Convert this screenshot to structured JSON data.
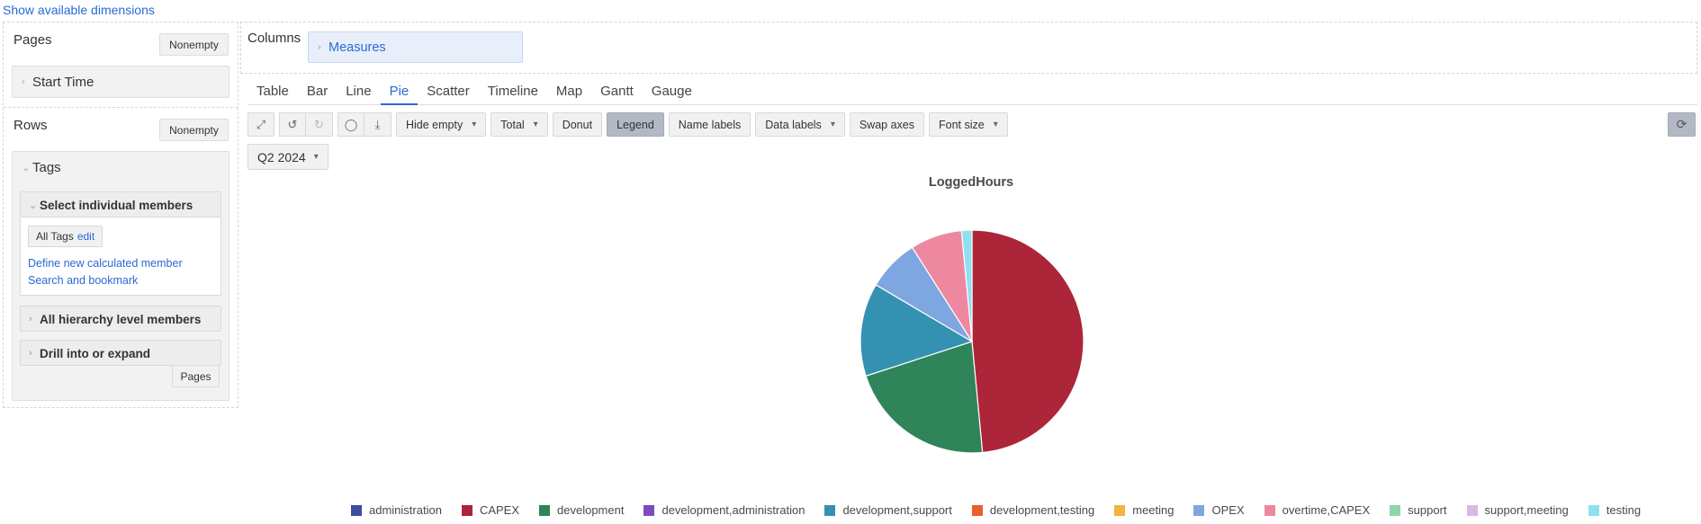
{
  "top_link": "Show available dimensions",
  "pages_section": {
    "title": "Pages",
    "nonempty": "Nonempty",
    "dimension": "Start Time"
  },
  "rows_section": {
    "title": "Rows",
    "nonempty": "Nonempty",
    "dimension": "Tags",
    "select_individual": "Select individual members",
    "chip_label": "All Tags",
    "chip_edit": "edit",
    "define_link": "Define new calculated member",
    "search_link": "Search and bookmark",
    "all_hierarchy": "All hierarchy level members",
    "drill": "Drill into or expand",
    "pages_button": "Pages"
  },
  "columns_section": {
    "title": "Columns",
    "measure": "Measures"
  },
  "chart_tabs": [
    {
      "label": "Table",
      "active": false
    },
    {
      "label": "Bar",
      "active": false
    },
    {
      "label": "Line",
      "active": false
    },
    {
      "label": "Pie",
      "active": true
    },
    {
      "label": "Scatter",
      "active": false
    },
    {
      "label": "Timeline",
      "active": false
    },
    {
      "label": "Map",
      "active": false
    },
    {
      "label": "Gantt",
      "active": false
    },
    {
      "label": "Gauge",
      "active": false
    }
  ],
  "toolbar": {
    "hide_empty": "Hide empty",
    "total": "Total",
    "donut": "Donut",
    "legend": "Legend",
    "name_labels": "Name labels",
    "data_labels": "Data labels",
    "swap_axes": "Swap axes",
    "font_size": "Font size"
  },
  "period": "Q2 2024",
  "chart_data": {
    "type": "pie",
    "title": "LoggedHours",
    "legend_position": "bottom",
    "categories": [
      "administration",
      "CAPEX",
      "development",
      "development,administration",
      "development,support",
      "development,testing",
      "meeting",
      "OPEX",
      "overtime,CAPEX",
      "support",
      "support,meeting",
      "testing"
    ],
    "colors": [
      "#3b4e9b",
      "#ad2538",
      "#2f845a",
      "#7e4bbd",
      "#3591b2",
      "#e8612a",
      "#f2b43d",
      "#7ea6e0",
      "#ee88a0",
      "#8fd6a6",
      "#d8b8e6",
      "#8ee0ef"
    ],
    "values": [
      0,
      48.5,
      21.5,
      0,
      13.5,
      0,
      0,
      7.5,
      7.5,
      0,
      0,
      1.5
    ]
  }
}
